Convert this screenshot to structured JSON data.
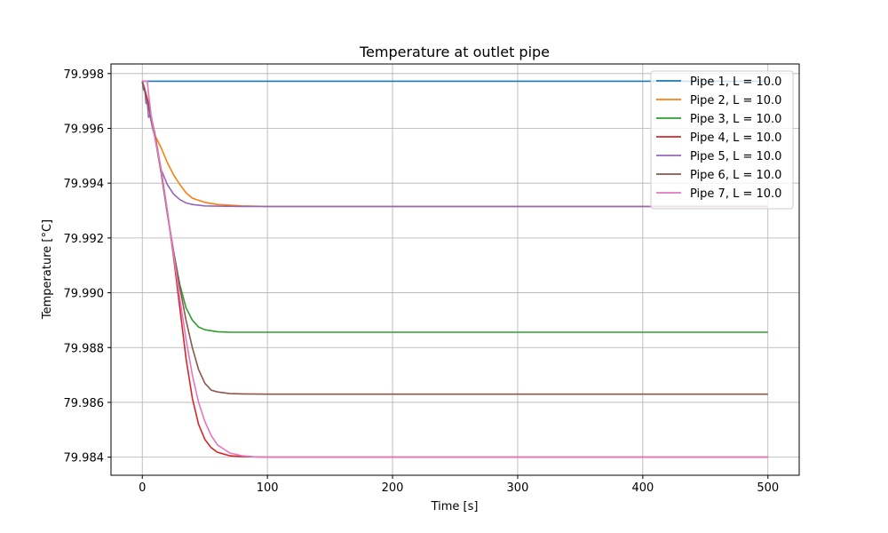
{
  "chart_data": {
    "type": "line",
    "title": "Temperature at outlet pipe",
    "xlabel": "Time [s]",
    "ylabel": "Temperature [°C]",
    "xlim": [
      -25,
      525
    ],
    "ylim": [
      79.98334,
      79.99835
    ],
    "xticks": [
      0,
      100,
      200,
      300,
      400,
      500
    ],
    "xtick_labels": [
      "0",
      "100",
      "200",
      "300",
      "400",
      "500"
    ],
    "yticks": [
      79.984,
      79.986,
      79.988,
      79.99,
      79.992,
      79.994,
      79.996,
      79.998
    ],
    "ytick_labels": [
      "79.984",
      "79.986",
      "79.988",
      "79.990",
      "79.992",
      "79.994",
      "79.996",
      "79.998"
    ],
    "grid": true,
    "legend_position": "top-right",
    "series": [
      {
        "name": "Pipe 1, L = 10.0",
        "color": "#1f77b4",
        "x": [
          0,
          500
        ],
        "y": [
          79.99772,
          79.99772
        ]
      },
      {
        "name": "Pipe 2, L = 10.0",
        "color": "#ff7f0e",
        "x": [
          0,
          2,
          5,
          10,
          15,
          20,
          25,
          30,
          35,
          40,
          50,
          60,
          80,
          100,
          500
        ],
        "y": [
          79.99772,
          79.99745,
          79.9969,
          79.99575,
          79.9953,
          79.99475,
          79.9943,
          79.99395,
          79.99365,
          79.99345,
          79.9933,
          79.99322,
          79.99317,
          79.99315,
          79.99315
        ]
      },
      {
        "name": "Pipe 3, L = 10.0",
        "color": "#2ca02c",
        "x": [
          0,
          5,
          10,
          15,
          20,
          25,
          30,
          35,
          40,
          45,
          50,
          60,
          70,
          80,
          100,
          500
        ],
        "y": [
          79.99772,
          79.99682,
          79.9958,
          79.9944,
          79.9929,
          79.9915,
          79.9903,
          79.98945,
          79.989,
          79.98875,
          79.98865,
          79.98858,
          79.98856,
          79.98856,
          79.98856,
          79.98856
        ]
      },
      {
        "name": "Pipe 4, L = 10.0",
        "color": "#d62728",
        "x": [
          0,
          5,
          10,
          15,
          20,
          25,
          30,
          35,
          40,
          45,
          50,
          55,
          60,
          70,
          80,
          90,
          100,
          500
        ],
        "y": [
          79.99772,
          79.9969,
          79.9958,
          79.9945,
          79.993,
          79.9913,
          79.98945,
          79.9876,
          79.98615,
          79.9852,
          79.98465,
          79.98435,
          79.98418,
          79.98405,
          79.98402,
          79.98401,
          79.984,
          79.984
        ]
      },
      {
        "name": "Pipe 5, L = 10.0",
        "color": "#9467bd",
        "x": [
          0,
          1,
          2,
          3,
          4,
          5,
          6,
          8,
          10,
          15,
          20,
          25,
          30,
          35,
          40,
          50,
          60,
          80,
          100,
          500
        ],
        "y": [
          79.99772,
          79.9974,
          79.99745,
          79.9969,
          79.99695,
          79.9964,
          79.9965,
          79.99605,
          79.9957,
          79.9945,
          79.99395,
          79.9936,
          79.9934,
          79.99328,
          79.99322,
          79.99317,
          79.99316,
          79.99315,
          79.99315,
          79.99315
        ]
      },
      {
        "name": "Pipe 6, L = 10.0",
        "color": "#8c564b",
        "x": [
          0,
          5,
          10,
          15,
          20,
          25,
          30,
          35,
          40,
          45,
          50,
          55,
          60,
          70,
          80,
          100,
          500
        ],
        "y": [
          79.99772,
          79.99682,
          79.9957,
          79.9944,
          79.9929,
          79.9915,
          79.9902,
          79.989,
          79.988,
          79.9872,
          79.9867,
          79.98645,
          79.98638,
          79.98632,
          79.98631,
          79.9863,
          79.9863
        ]
      },
      {
        "name": "Pipe 7, L = 10.0",
        "color": "#e377c2",
        "x": [
          0,
          4,
          5,
          7,
          10,
          15,
          20,
          25,
          30,
          35,
          40,
          45,
          50,
          55,
          60,
          70,
          80,
          90,
          100,
          500
        ],
        "y": [
          79.99772,
          79.99772,
          79.99725,
          79.9965,
          79.9957,
          79.9945,
          79.993,
          79.9914,
          79.9898,
          79.9883,
          79.987,
          79.986,
          79.9853,
          79.9848,
          79.98445,
          79.98415,
          79.98405,
          79.98401,
          79.984,
          79.984
        ]
      }
    ]
  }
}
